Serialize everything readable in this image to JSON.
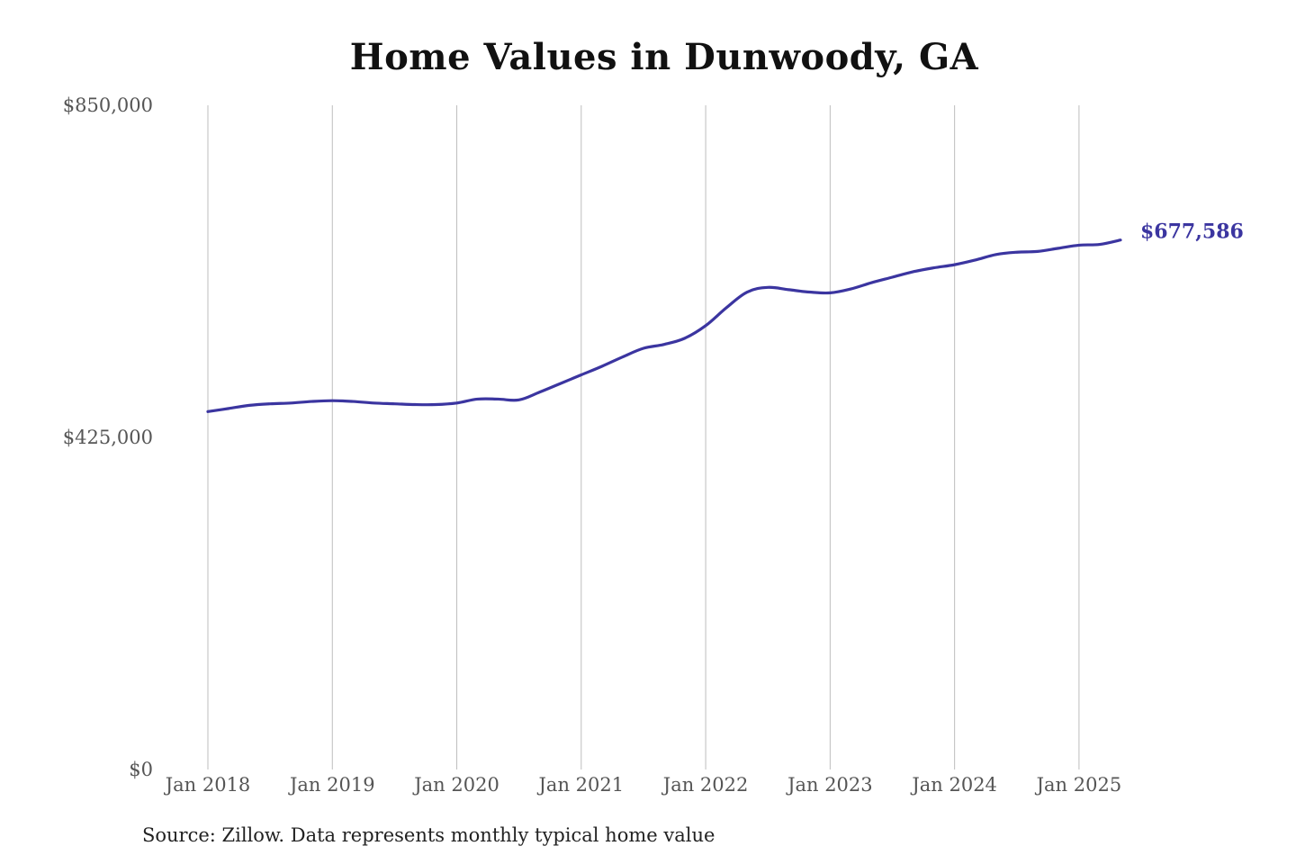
{
  "chart_data": {
    "type": "line",
    "title": "Home Values in Dunwoody, GA",
    "source": "Source: Zillow. Data represents monthly typical home value",
    "ylim": [
      0,
      850000
    ],
    "y_ticks": [
      {
        "value": 0,
        "label": "$0"
      },
      {
        "value": 425000,
        "label": "$425,000"
      },
      {
        "value": 850000,
        "label": "$850,000"
      }
    ],
    "x_ticks": [
      {
        "value": "2018-01",
        "label": "Jan 2018"
      },
      {
        "value": "2019-01",
        "label": "Jan 2019"
      },
      {
        "value": "2020-01",
        "label": "Jan 2020"
      },
      {
        "value": "2021-01",
        "label": "Jan 2021"
      },
      {
        "value": "2022-01",
        "label": "Jan 2022"
      },
      {
        "value": "2023-01",
        "label": "Jan 2023"
      },
      {
        "value": "2024-01",
        "label": "Jan 2024"
      },
      {
        "value": "2025-01",
        "label": "Jan 2025"
      }
    ],
    "xlim": [
      "2018-01",
      "2025-05"
    ],
    "grid": "vertical",
    "line_color": "#3b35a0",
    "series": [
      {
        "x": [
          "2018-01",
          "2018-03",
          "2018-05",
          "2018-07",
          "2018-09",
          "2018-11",
          "2019-01",
          "2019-03",
          "2019-05",
          "2019-07",
          "2019-09",
          "2019-11",
          "2020-01",
          "2020-03",
          "2020-05",
          "2020-07",
          "2020-09",
          "2020-11",
          "2021-01",
          "2021-03",
          "2021-05",
          "2021-07",
          "2021-09",
          "2021-11",
          "2022-01",
          "2022-03",
          "2022-05",
          "2022-07",
          "2022-09",
          "2022-11",
          "2023-01",
          "2023-03",
          "2023-05",
          "2023-07",
          "2023-09",
          "2023-11",
          "2024-01",
          "2024-03",
          "2024-05",
          "2024-07",
          "2024-09",
          "2024-11",
          "2025-01",
          "2025-03",
          "2025-05"
        ],
        "values": [
          458000,
          462000,
          466000,
          468000,
          469000,
          471000,
          472000,
          471000,
          469000,
          468000,
          467000,
          467000,
          469000,
          474000,
          474000,
          473000,
          483000,
          494000,
          505000,
          516000,
          528000,
          539000,
          544000,
          552000,
          568000,
          591000,
          611000,
          617000,
          614000,
          611000,
          610000,
          615000,
          623000,
          630000,
          637000,
          642000,
          646000,
          652000,
          659000,
          662000,
          663000,
          667000,
          671000,
          672000,
          677586
        ]
      }
    ],
    "end_label": "$677,586"
  }
}
